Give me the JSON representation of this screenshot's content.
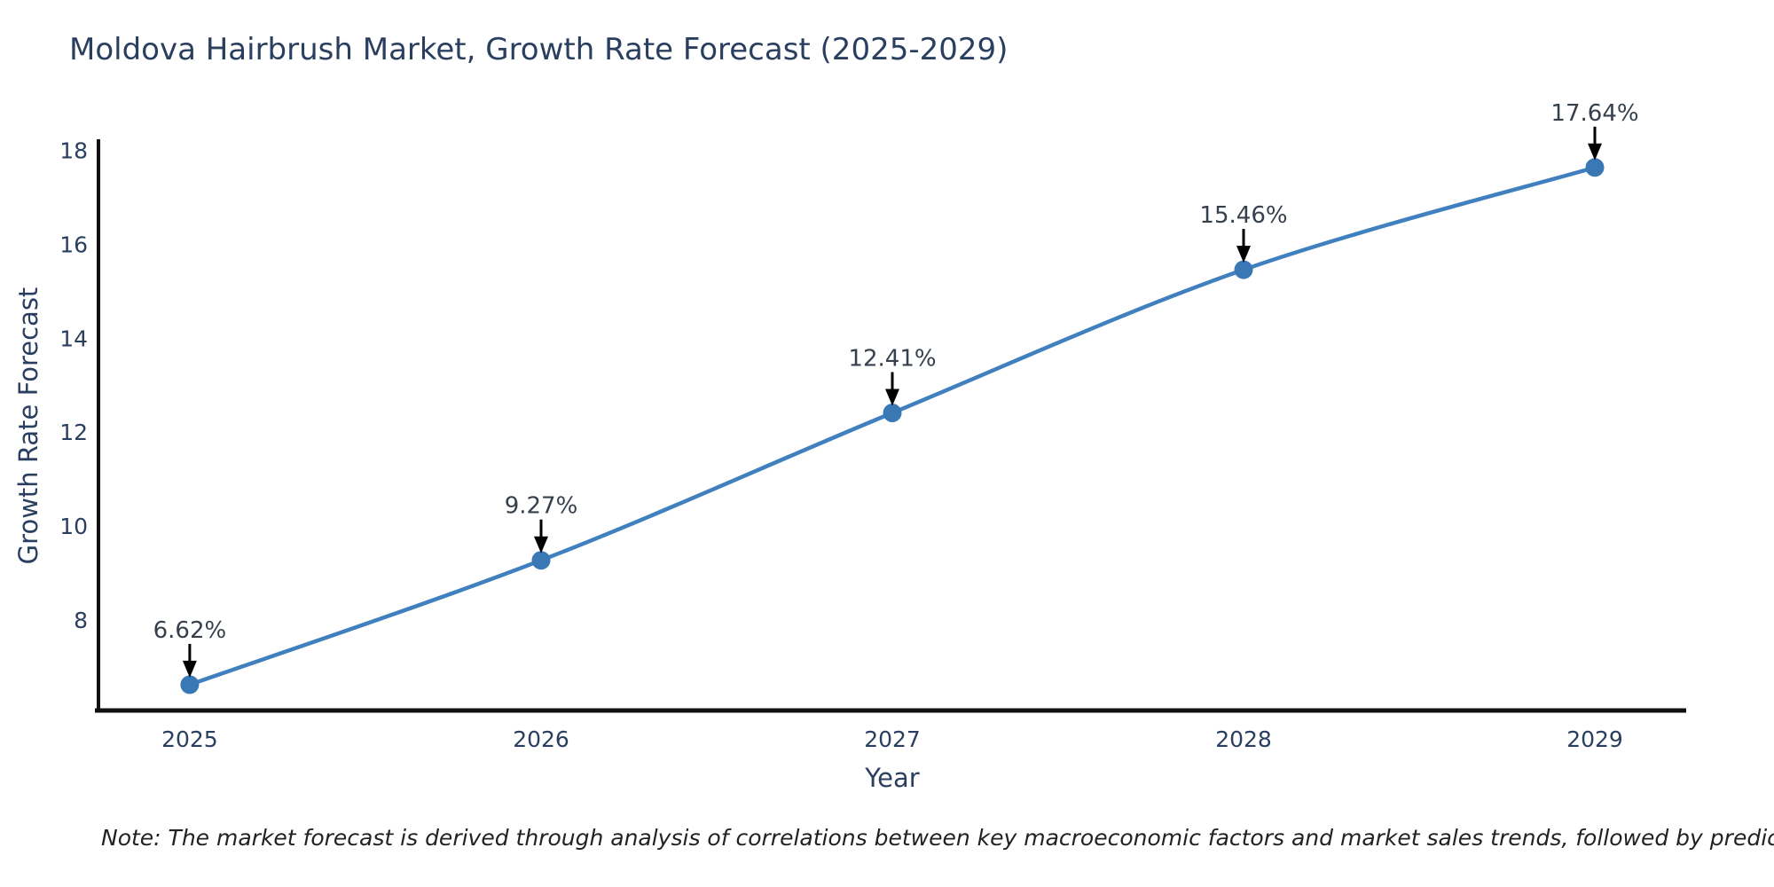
{
  "note": "Note: The market forecast is derived through analysis of correlations between key macroeconomic factors and market sales trends, followed by predictive modeling to project future sales",
  "chart_data": {
    "type": "line",
    "title": "Moldova Hairbrush Market, Growth Rate Forecast (2025-2029)",
    "x": [
      2025,
      2026,
      2027,
      2028,
      2029
    ],
    "categories": [
      "2025",
      "2026",
      "2027",
      "2028",
      "2029"
    ],
    "values": [
      6.62,
      9.27,
      12.41,
      15.46,
      17.64
    ],
    "point_labels": [
      "6.62%",
      "9.27%",
      "12.41%",
      "15.46%",
      "17.64%"
    ],
    "xlabel": "Year",
    "ylabel": "Growth Rate Forecast",
    "yticks": [
      8,
      10,
      12,
      14,
      16,
      18
    ],
    "ylim": [
      6.07,
      18.24
    ],
    "xlim": [
      2024.73,
      2029.26
    ],
    "grid": false,
    "legend": "none",
    "line_shape": "spline",
    "colors": {
      "line": "#4080bf",
      "marker": "#3a78b5",
      "axis": "#111111",
      "tick_text": "#2a3f5f",
      "title_text": "#2a3f5f",
      "annotation_text": "#36404d",
      "arrow": "#000000",
      "background": "#ffffff"
    }
  }
}
